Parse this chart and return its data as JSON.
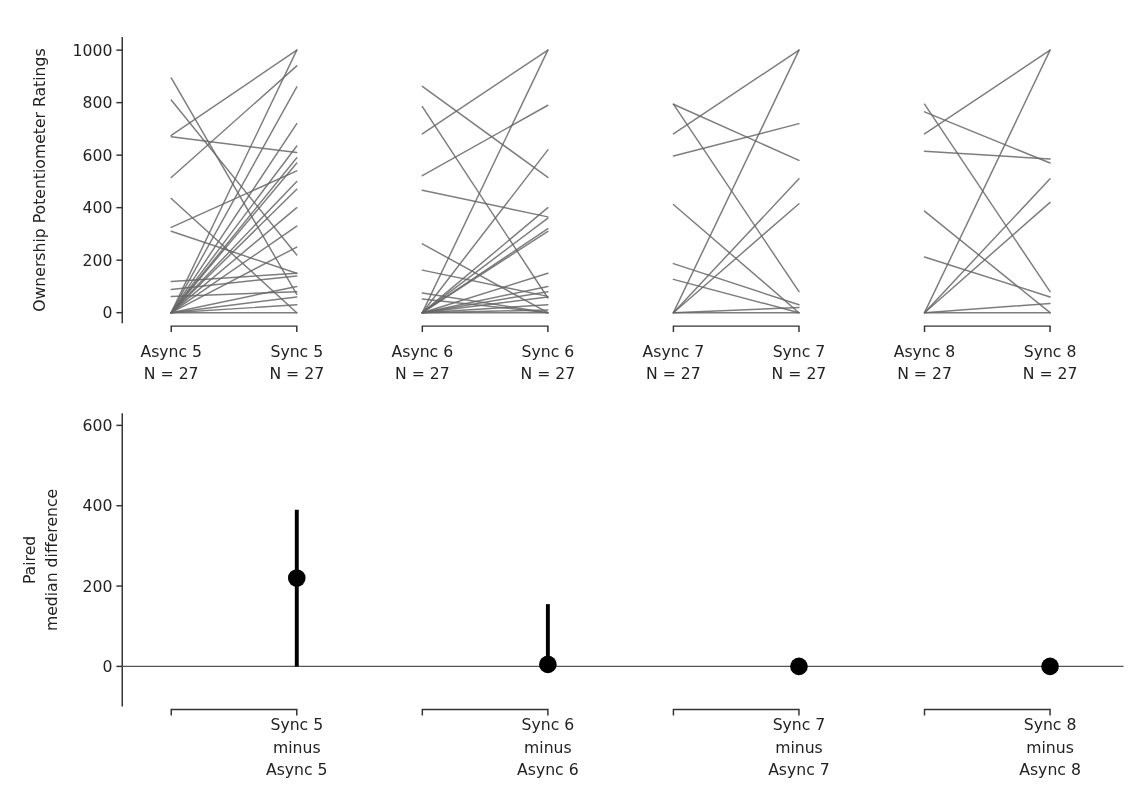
{
  "chart_data": [
    {
      "type": "line",
      "categories": [
        "Async 5\nN = 27",
        "Sync 5\nN = 27",
        "Async 6\nN = 27",
        "Sync 6\nN = 27",
        "Async 7\nN = 27",
        "Sync 7\nN = 27",
        "Async 8\nN = 27",
        "Sync 8\nN = 27"
      ],
      "ylabel": "Ownership Potentiometer Ratings",
      "ylim": [
        -40,
        1050
      ],
      "yticks": [
        0,
        200,
        400,
        600,
        800,
        1000
      ],
      "series": [
        {
          "color": "#666666",
          "x": [
            "Async 5\nN = 27",
            "Sync 5\nN = 27"
          ],
          "values": [
            894,
            70
          ]
        },
        {
          "color": "#666666",
          "x": [
            "Async 5\nN = 27",
            "Sync 5\nN = 27"
          ],
          "values": [
            810,
            220
          ]
        },
        {
          "color": "#666666",
          "x": [
            "Async 5\nN = 27",
            "Sync 5\nN = 27"
          ],
          "values": [
            675,
            1000
          ]
        },
        {
          "color": "#666666",
          "x": [
            "Async 5\nN = 27",
            "Sync 5\nN = 27"
          ],
          "values": [
            670,
            610
          ]
        },
        {
          "color": "#666666",
          "x": [
            "Async 5\nN = 27",
            "Sync 5\nN = 27"
          ],
          "values": [
            515,
            940
          ]
        },
        {
          "color": "#666666",
          "x": [
            "Async 5\nN = 27",
            "Sync 5\nN = 27"
          ],
          "values": [
            435,
            0
          ]
        },
        {
          "color": "#666666",
          "x": [
            "Async 5\nN = 27",
            "Sync 5\nN = 27"
          ],
          "values": [
            325,
            540
          ]
        },
        {
          "color": "#666666",
          "x": [
            "Async 5\nN = 27",
            "Sync 5\nN = 27"
          ],
          "values": [
            310,
            150
          ]
        },
        {
          "color": "#666666",
          "x": [
            "Async 5\nN = 27",
            "Sync 5\nN = 27"
          ],
          "values": [
            119,
            150
          ]
        },
        {
          "color": "#666666",
          "x": [
            "Async 5\nN = 27",
            "Sync 5\nN = 27"
          ],
          "values": [
            88,
            140
          ]
        },
        {
          "color": "#666666",
          "x": [
            "Async 5\nN = 27",
            "Sync 5\nN = 27"
          ],
          "values": [
            62,
            80
          ]
        },
        {
          "color": "#666666",
          "x": [
            "Async 5\nN = 27",
            "Sync 5\nN = 27"
          ],
          "values": [
            0,
            1000
          ]
        },
        {
          "color": "#666666",
          "x": [
            "Async 5\nN = 27",
            "Sync 5\nN = 27"
          ],
          "values": [
            0,
            860
          ]
        },
        {
          "color": "#666666",
          "x": [
            "Async 5\nN = 27",
            "Sync 5\nN = 27"
          ],
          "values": [
            0,
            720
          ]
        },
        {
          "color": "#666666",
          "x": [
            "Async 5\nN = 27",
            "Sync 5\nN = 27"
          ],
          "values": [
            0,
            635
          ]
        },
        {
          "color": "#666666",
          "x": [
            "Async 5\nN = 27",
            "Sync 5\nN = 27"
          ],
          "values": [
            0,
            590
          ]
        },
        {
          "color": "#666666",
          "x": [
            "Async 5\nN = 27",
            "Sync 5\nN = 27"
          ],
          "values": [
            0,
            570
          ]
        },
        {
          "color": "#666666",
          "x": [
            "Async 5\nN = 27",
            "Sync 5\nN = 27"
          ],
          "values": [
            0,
            500
          ]
        },
        {
          "color": "#666666",
          "x": [
            "Async 5\nN = 27",
            "Sync 5\nN = 27"
          ],
          "values": [
            0,
            470
          ]
        },
        {
          "color": "#666666",
          "x": [
            "Async 5\nN = 27",
            "Sync 5\nN = 27"
          ],
          "values": [
            0,
            400
          ]
        },
        {
          "color": "#666666",
          "x": [
            "Async 5\nN = 27",
            "Sync 5\nN = 27"
          ],
          "values": [
            0,
            330
          ]
        },
        {
          "color": "#666666",
          "x": [
            "Async 5\nN = 27",
            "Sync 5\nN = 27"
          ],
          "values": [
            0,
            250
          ]
        },
        {
          "color": "#666666",
          "x": [
            "Async 5\nN = 27",
            "Sync 5\nN = 27"
          ],
          "values": [
            0,
            100
          ]
        },
        {
          "color": "#666666",
          "x": [
            "Async 5\nN = 27",
            "Sync 5\nN = 27"
          ],
          "values": [
            0,
            60
          ]
        },
        {
          "color": "#666666",
          "x": [
            "Async 5\nN = 27",
            "Sync 5\nN = 27"
          ],
          "values": [
            0,
            30
          ]
        },
        {
          "color": "#666666",
          "x": [
            "Async 5\nN = 27",
            "Sync 5\nN = 27"
          ],
          "values": [
            0,
            0
          ]
        },
        {
          "color": "#666666",
          "x": [
            "Async 6\nN = 27",
            "Sync 6\nN = 27"
          ],
          "values": [
            862,
            515
          ]
        },
        {
          "color": "#666666",
          "x": [
            "Async 6\nN = 27",
            "Sync 6\nN = 27"
          ],
          "values": [
            785,
            56
          ]
        },
        {
          "color": "#666666",
          "x": [
            "Async 6\nN = 27",
            "Sync 6\nN = 27"
          ],
          "values": [
            681,
            1000
          ]
        },
        {
          "color": "#666666",
          "x": [
            "Async 6\nN = 27",
            "Sync 6\nN = 27"
          ],
          "values": [
            522,
            790
          ]
        },
        {
          "color": "#666666",
          "x": [
            "Async 6\nN = 27",
            "Sync 6\nN = 27"
          ],
          "values": [
            466,
            365
          ]
        },
        {
          "color": "#666666",
          "x": [
            "Async 6\nN = 27",
            "Sync 6\nN = 27"
          ],
          "values": [
            262,
            0
          ]
        },
        {
          "color": "#666666",
          "x": [
            "Async 6\nN = 27",
            "Sync 6\nN = 27"
          ],
          "values": [
            162,
            62
          ]
        },
        {
          "color": "#666666",
          "x": [
            "Async 6\nN = 27",
            "Sync 6\nN = 27"
          ],
          "values": [
            75,
            0
          ]
        },
        {
          "color": "#666666",
          "x": [
            "Async 6\nN = 27",
            "Sync 6\nN = 27"
          ],
          "values": [
            52,
            0
          ]
        },
        {
          "color": "#666666",
          "x": [
            "Async 6\nN = 27",
            "Sync 6\nN = 27"
          ],
          "values": [
            0,
            1000
          ]
        },
        {
          "color": "#666666",
          "x": [
            "Async 6\nN = 27",
            "Sync 6\nN = 27"
          ],
          "values": [
            0,
            620
          ]
        },
        {
          "color": "#666666",
          "x": [
            "Async 6\nN = 27",
            "Sync 6\nN = 27"
          ],
          "values": [
            0,
            400
          ]
        },
        {
          "color": "#666666",
          "x": [
            "Async 6\nN = 27",
            "Sync 6\nN = 27"
          ],
          "values": [
            0,
            360
          ]
        },
        {
          "color": "#666666",
          "x": [
            "Async 6\nN = 27",
            "Sync 6\nN = 27"
          ],
          "values": [
            0,
            320
          ]
        },
        {
          "color": "#666666",
          "x": [
            "Async 6\nN = 27",
            "Sync 6\nN = 27"
          ],
          "values": [
            0,
            310
          ]
        },
        {
          "color": "#666666",
          "x": [
            "Async 6\nN = 27",
            "Sync 6\nN = 27"
          ],
          "values": [
            0,
            150
          ]
        },
        {
          "color": "#666666",
          "x": [
            "Async 6\nN = 27",
            "Sync 6\nN = 27"
          ],
          "values": [
            0,
            100
          ]
        },
        {
          "color": "#666666",
          "x": [
            "Async 6\nN = 27",
            "Sync 6\nN = 27"
          ],
          "values": [
            0,
            80
          ]
        },
        {
          "color": "#666666",
          "x": [
            "Async 6\nN = 27",
            "Sync 6\nN = 27"
          ],
          "values": [
            0,
            60
          ]
        },
        {
          "color": "#666666",
          "x": [
            "Async 6\nN = 27",
            "Sync 6\nN = 27"
          ],
          "values": [
            0,
            30
          ]
        },
        {
          "color": "#666666",
          "x": [
            "Async 6\nN = 27",
            "Sync 6\nN = 27"
          ],
          "values": [
            0,
            10
          ]
        },
        {
          "color": "#666666",
          "x": [
            "Async 6\nN = 27",
            "Sync 6\nN = 27"
          ],
          "values": [
            0,
            0
          ]
        },
        {
          "color": "#666666",
          "x": [
            "Async 7\nN = 27",
            "Sync 7\nN = 27"
          ],
          "values": [
            794,
            580
          ]
        },
        {
          "color": "#666666",
          "x": [
            "Async 7\nN = 27",
            "Sync 7\nN = 27"
          ],
          "values": [
            794,
            80
          ]
        },
        {
          "color": "#666666",
          "x": [
            "Async 7\nN = 27",
            "Sync 7\nN = 27"
          ],
          "values": [
            681,
            1000
          ]
        },
        {
          "color": "#666666",
          "x": [
            "Async 7\nN = 27",
            "Sync 7\nN = 27"
          ],
          "values": [
            597,
            720
          ]
        },
        {
          "color": "#666666",
          "x": [
            "Async 7\nN = 27",
            "Sync 7\nN = 27"
          ],
          "values": [
            412,
            0
          ]
        },
        {
          "color": "#666666",
          "x": [
            "Async 7\nN = 27",
            "Sync 7\nN = 27"
          ],
          "values": [
            187,
            30
          ]
        },
        {
          "color": "#666666",
          "x": [
            "Async 7\nN = 27",
            "Sync 7\nN = 27"
          ],
          "values": [
            127,
            0
          ]
        },
        {
          "color": "#666666",
          "x": [
            "Async 7\nN = 27",
            "Sync 7\nN = 27"
          ],
          "values": [
            0,
            1000
          ]
        },
        {
          "color": "#666666",
          "x": [
            "Async 7\nN = 27",
            "Sync 7\nN = 27"
          ],
          "values": [
            0,
            510
          ]
        },
        {
          "color": "#666666",
          "x": [
            "Async 7\nN = 27",
            "Sync 7\nN = 27"
          ],
          "values": [
            0,
            415
          ]
        },
        {
          "color": "#666666",
          "x": [
            "Async 7\nN = 27",
            "Sync 7\nN = 27"
          ],
          "values": [
            0,
            20
          ]
        },
        {
          "color": "#666666",
          "x": [
            "Async 7\nN = 27",
            "Sync 7\nN = 27"
          ],
          "values": [
            0,
            0
          ]
        },
        {
          "color": "#666666",
          "x": [
            "Async 8\nN = 27",
            "Sync 8\nN = 27"
          ],
          "values": [
            794,
            80
          ]
        },
        {
          "color": "#666666",
          "x": [
            "Async 8\nN = 27",
            "Sync 8\nN = 27"
          ],
          "values": [
            765,
            570
          ]
        },
        {
          "color": "#666666",
          "x": [
            "Async 8\nN = 27",
            "Sync 8\nN = 27"
          ],
          "values": [
            681,
            1000
          ]
        },
        {
          "color": "#666666",
          "x": [
            "Async 8\nN = 27",
            "Sync 8\nN = 27"
          ],
          "values": [
            615,
            585
          ]
        },
        {
          "color": "#666666",
          "x": [
            "Async 8\nN = 27",
            "Sync 8\nN = 27"
          ],
          "values": [
            387,
            0
          ]
        },
        {
          "color": "#666666",
          "x": [
            "Async 8\nN = 27",
            "Sync 8\nN = 27"
          ],
          "values": [
            212,
            60
          ]
        },
        {
          "color": "#666666",
          "x": [
            "Async 8\nN = 27",
            "Sync 8\nN = 27"
          ],
          "values": [
            0,
            1000
          ]
        },
        {
          "color": "#666666",
          "x": [
            "Async 8\nN = 27",
            "Sync 8\nN = 27"
          ],
          "values": [
            0,
            510
          ]
        },
        {
          "color": "#666666",
          "x": [
            "Async 8\nN = 27",
            "Sync 8\nN = 27"
          ],
          "values": [
            0,
            420
          ]
        },
        {
          "color": "#666666",
          "x": [
            "Async 8\nN = 27",
            "Sync 8\nN = 27"
          ],
          "values": [
            0,
            35
          ]
        },
        {
          "color": "#666666",
          "x": [
            "Async 8\nN = 27",
            "Sync 8\nN = 27"
          ],
          "values": [
            0,
            0
          ]
        }
      ]
    },
    {
      "type": "scatter",
      "categories": [
        null,
        "Sync 5\nminus\nAsync 5",
        null,
        "Sync 6\nminus\nAsync 6",
        null,
        "Sync 7\nminus\nAsync 7",
        null,
        "Sync 8\nminus\nAsync 8"
      ],
      "ylabel": "Paired\nmedian difference",
      "ylim": [
        -100,
        630
      ],
      "yticks": [
        0,
        200,
        400,
        600
      ],
      "color": "#000000",
      "marker": "circle",
      "values": [
        null,
        220,
        null,
        5,
        null,
        0,
        null,
        0
      ],
      "errors": [
        null,
        [
          0,
          390
        ],
        null,
        [
          5,
          155
        ],
        null,
        null,
        null,
        null
      ],
      "ref_lines": [
        {
          "axis": "y",
          "value": 0,
          "color": "#555555"
        }
      ]
    }
  ]
}
